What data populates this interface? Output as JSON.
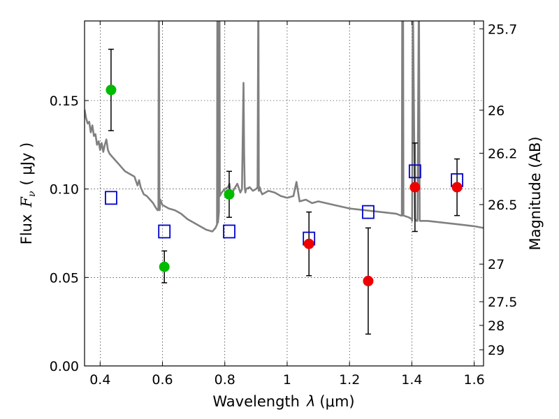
{
  "chart_data": {
    "type": "scatter",
    "xlabel_text": "Wavelength",
    "xlabel_symbol": "λ",
    "xlabel_unit": "(μm)",
    "ylabel_text": "Flux",
    "ylabel_symbol": "F",
    "ylabel_sub": "ν",
    "ylabel_unit": "( μJy )",
    "y2label": "Magnitude (AB)",
    "xlim": [
      0.35,
      1.63
    ],
    "ylim": [
      0.0,
      0.195
    ],
    "x_ticks": [
      {
        "v": 0.4,
        "label": "0.4"
      },
      {
        "v": 0.6,
        "label": "0.6"
      },
      {
        "v": 0.8,
        "label": "0.8"
      },
      {
        "v": 1.0,
        "label": "1"
      },
      {
        "v": 1.2,
        "label": "1.2"
      },
      {
        "v": 1.4,
        "label": "1.4"
      },
      {
        "v": 1.6,
        "label": "1.6"
      }
    ],
    "y_ticks": [
      {
        "v": 0.0,
        "label": "0.00"
      },
      {
        "v": 0.05,
        "label": "0.05"
      },
      {
        "v": 0.1,
        "label": "0.10"
      },
      {
        "v": 0.15,
        "label": "0.15"
      }
    ],
    "mag_ticks": [
      {
        "mag": 25.7,
        "label": "25.7"
      },
      {
        "mag": 26,
        "label": "26"
      },
      {
        "mag": 26.2,
        "label": "26.2"
      },
      {
        "mag": 26.5,
        "label": "26.5"
      },
      {
        "mag": 27,
        "label": "27"
      },
      {
        "mag": 27.5,
        "label": "27.5"
      },
      {
        "mag": 28,
        "label": "28"
      },
      {
        "mag": 29,
        "label": "29"
      }
    ],
    "grid": true,
    "colors": {
      "model": "#808080",
      "model_points": "#0000cc",
      "optical": "#00bb00",
      "nir": "#ee0000",
      "errorbar": "#000000"
    },
    "observed_optical": [
      {
        "x": 0.435,
        "y": 0.156,
        "err": 0.023
      },
      {
        "x": 0.606,
        "y": 0.056,
        "err": 0.009
      },
      {
        "x": 0.814,
        "y": 0.097,
        "err": 0.013
      }
    ],
    "observed_nir": [
      {
        "x": 1.07,
        "y": 0.069,
        "err": 0.018
      },
      {
        "x": 1.26,
        "y": 0.048,
        "err": 0.03
      },
      {
        "x": 1.41,
        "y": 0.101,
        "err": 0.025
      },
      {
        "x": 1.545,
        "y": 0.101,
        "err": 0.016
      }
    ],
    "model_photometry": [
      {
        "x": 0.435,
        "y": 0.095
      },
      {
        "x": 0.606,
        "y": 0.076
      },
      {
        "x": 0.814,
        "y": 0.076
      },
      {
        "x": 1.07,
        "y": 0.072
      },
      {
        "x": 1.26,
        "y": 0.087
      },
      {
        "x": 1.41,
        "y": 0.11
      },
      {
        "x": 1.545,
        "y": 0.105
      }
    ],
    "model_spectrum": {
      "x": [
        0.35,
        0.355,
        0.36,
        0.365,
        0.37,
        0.375,
        0.38,
        0.385,
        0.39,
        0.395,
        0.4,
        0.405,
        0.41,
        0.415,
        0.42,
        0.425,
        0.43,
        0.435,
        0.44,
        0.45,
        0.46,
        0.47,
        0.48,
        0.49,
        0.5,
        0.51,
        0.52,
        0.525,
        0.53,
        0.54,
        0.55,
        0.56,
        0.57,
        0.58,
        0.585,
        0.587,
        0.588,
        0.589,
        0.59,
        0.591,
        0.593,
        0.6,
        0.62,
        0.64,
        0.66,
        0.68,
        0.7,
        0.72,
        0.74,
        0.76,
        0.77,
        0.775,
        0.776,
        0.777,
        0.778,
        0.781,
        0.782,
        0.783,
        0.784,
        0.79,
        0.8,
        0.81,
        0.815,
        0.82,
        0.83,
        0.84,
        0.85,
        0.855,
        0.86,
        0.862,
        0.864,
        0.866,
        0.868,
        0.88,
        0.89,
        0.9,
        0.905,
        0.907,
        0.908,
        0.909,
        0.912,
        0.913,
        0.915,
        0.92,
        0.94,
        0.96,
        0.98,
        1.0,
        1.02,
        1.025,
        1.03,
        1.04,
        1.06,
        1.08,
        1.1,
        1.15,
        1.2,
        1.25,
        1.3,
        1.35,
        1.365,
        1.368,
        1.369,
        1.372,
        1.373,
        1.39,
        1.4,
        1.401,
        1.403,
        1.404,
        1.41,
        1.415,
        1.418,
        1.422,
        1.423,
        1.425,
        1.426,
        1.43,
        1.45,
        1.5,
        1.55,
        1.6,
        1.63
      ],
      "y": [
        0.145,
        0.14,
        0.137,
        0.138,
        0.132,
        0.136,
        0.13,
        0.131,
        0.125,
        0.127,
        0.122,
        0.126,
        0.121,
        0.125,
        0.128,
        0.122,
        0.12,
        0.119,
        0.118,
        0.116,
        0.114,
        0.112,
        0.11,
        0.109,
        0.108,
        0.107,
        0.102,
        0.105,
        0.101,
        0.097,
        0.096,
        0.094,
        0.092,
        0.089,
        0.088,
        0.089,
        0.195,
        0.195,
        0.093,
        0.088,
        0.094,
        0.091,
        0.089,
        0.088,
        0.086,
        0.083,
        0.081,
        0.079,
        0.077,
        0.076,
        0.078,
        0.08,
        0.195,
        0.195,
        0.081,
        0.087,
        0.195,
        0.195,
        0.096,
        0.098,
        0.1,
        0.101,
        0.103,
        0.096,
        0.1,
        0.103,
        0.098,
        0.1,
        0.16,
        0.12,
        0.101,
        0.098,
        0.1,
        0.101,
        0.099,
        0.1,
        0.101,
        0.195,
        0.195,
        0.099,
        0.101,
        0.1,
        0.099,
        0.097,
        0.099,
        0.098,
        0.096,
        0.095,
        0.096,
        0.1,
        0.104,
        0.093,
        0.094,
        0.092,
        0.093,
        0.091,
        0.089,
        0.088,
        0.087,
        0.086,
        0.085,
        0.085,
        0.195,
        0.195,
        0.085,
        0.084,
        0.083,
        0.082,
        0.195,
        0.195,
        0.083,
        0.082,
        0.082,
        0.195,
        0.195,
        0.083,
        0.082,
        0.082,
        0.082,
        0.081,
        0.08,
        0.079,
        0.078
      ]
    }
  }
}
